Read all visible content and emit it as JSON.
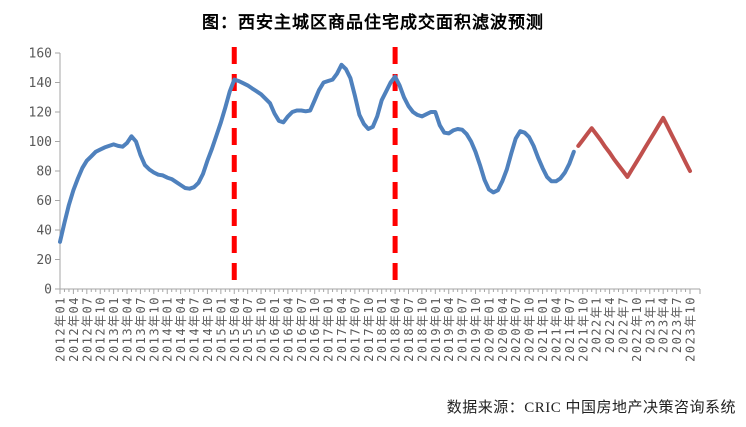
{
  "page": {
    "title": "图：西安主城区商品住宅成交面积滤波预测",
    "source": "数据来源：CRIC 中国房地产决策咨询系统"
  },
  "colors": {
    "history_line": "#4F81BD",
    "forecast_line": "#C0504D",
    "marker_line": "#FF0000",
    "axis_line": "#A6A6A6",
    "tick_label": "#595959",
    "title_text": "#000000",
    "background": "#FFFFFF"
  },
  "chart_data": {
    "type": "line",
    "title": "图：西安主城区商品住宅成交面积滤波预测",
    "xlabel": "",
    "ylabel": "",
    "ylim": [
      0,
      160
    ],
    "yticks": [
      0,
      20,
      40,
      60,
      80,
      100,
      120,
      140,
      160
    ],
    "grid": false,
    "legend": "none",
    "x_unit": "month",
    "total_months": 142,
    "x_start": "2012-01",
    "x_end": "2023-10",
    "x_tick_label_interval_months": 3,
    "x_tick_labels": [
      "2012年01",
      "2012年04",
      "2012年07",
      "2012年10",
      "2013年01",
      "2013年04",
      "2013年07",
      "2013年10",
      "2014年01",
      "2014年04",
      "2014年07",
      "2014年10",
      "2015年01",
      "2015年04",
      "2015年07",
      "2015年10",
      "2016年01",
      "2016年04",
      "2016年07",
      "2016年10",
      "2017年01",
      "2017年04",
      "2017年07",
      "2017年10",
      "2018年01",
      "2018年04",
      "2018年07",
      "2018年10",
      "2019年01",
      "2019年04",
      "2019年07",
      "2019年10",
      "2020年01",
      "2020年04",
      "2020年07",
      "2020年10",
      "2021年01",
      "2021年04",
      "2021年07",
      "2021年10",
      "2022年1",
      "2022年4",
      "2022年7",
      "2022年10",
      "2023年1",
      "2023年4",
      "2023年7",
      "2023年10"
    ],
    "series": [
      {
        "name": "history",
        "color": "#4F81BD",
        "line_style": "solid",
        "start_month_index": 0,
        "start_label": "2012年01",
        "end_label": "2021年08",
        "values": [
          32,
          45,
          57,
          67,
          75,
          82,
          87,
          90,
          93,
          94.5,
          96,
          97,
          98,
          97,
          96.5,
          99,
          103.5,
          100,
          91,
          84,
          81,
          79,
          77.5,
          77,
          75.5,
          74.5,
          72.5,
          70.5,
          68.5,
          68,
          69,
          72,
          78,
          87,
          95,
          104,
          113,
          123,
          134,
          142,
          141,
          139.5,
          138,
          136,
          134,
          132,
          129,
          126,
          119,
          114,
          113,
          117,
          120,
          121,
          121,
          120.5,
          121,
          128,
          135,
          140,
          141,
          142,
          146,
          152,
          149,
          143,
          131,
          118,
          112,
          108.5,
          110,
          117,
          128,
          134,
          140,
          144,
          138,
          130,
          124,
          120,
          118,
          117,
          118.5,
          120,
          120,
          111,
          106,
          105.5,
          107.5,
          108.5,
          108,
          105,
          100,
          93,
          84,
          74,
          67.5,
          65.5,
          67,
          73,
          81,
          92,
          102,
          107,
          106,
          103,
          97,
          89,
          82,
          76,
          73,
          73,
          75,
          79,
          85,
          93
        ]
      },
      {
        "name": "forecast",
        "color": "#C0504D",
        "line_style": "solid",
        "start_month_index": 116,
        "start_label": "2021年09",
        "end_label": "2023年10",
        "values": [
          97,
          101,
          105,
          109,
          105,
          101,
          96.5,
          92.5,
          88,
          84,
          80,
          76,
          81,
          86,
          91,
          96,
          101,
          106,
          111,
          116,
          110,
          104,
          98,
          92,
          86,
          80
        ]
      }
    ],
    "vertical_markers": [
      {
        "at_label": "2015年04",
        "month_index": 39,
        "color": "#FF0000",
        "style": "dashed"
      },
      {
        "at_label": "2018年04",
        "month_index": 75,
        "color": "#FF0000",
        "style": "dashed"
      }
    ]
  }
}
